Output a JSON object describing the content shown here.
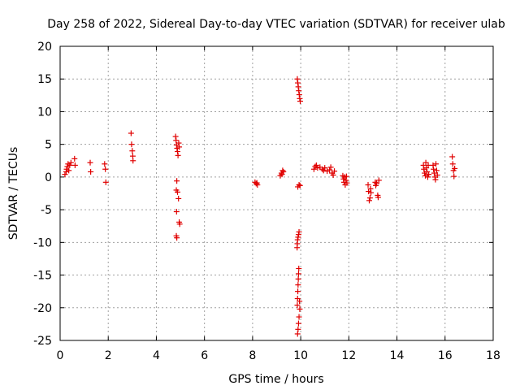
{
  "chart_data": {
    "type": "scatter",
    "title": "Day 258 of 2022, Sidereal Day-to-day VTEC variation (SDTVAR) for receiver ulab",
    "xlabel": "GPS time / hours",
    "ylabel": "SDTVAR / TECUs",
    "xlim": [
      0,
      18
    ],
    "ylim": [
      -25,
      20
    ],
    "xticks": [
      "0",
      "2",
      "4",
      "6",
      "8",
      "10",
      "12",
      "14",
      "16",
      "18"
    ],
    "yticks": [
      "-25",
      "-20",
      "-15",
      "-10",
      "-5",
      "0",
      "5",
      "10",
      "15",
      "20"
    ],
    "grid": true,
    "marker": "plus",
    "series_color": "#e00000",
    "points": [
      [
        0.2,
        0.4
      ],
      [
        0.25,
        0.8
      ],
      [
        0.27,
        1.2
      ],
      [
        0.3,
        1.6
      ],
      [
        0.33,
        2.0
      ],
      [
        0.36,
        1.0
      ],
      [
        0.4,
        1.8
      ],
      [
        0.45,
        2.2
      ],
      [
        0.6,
        2.8
      ],
      [
        0.62,
        1.8
      ],
      [
        1.25,
        2.2
      ],
      [
        1.27,
        0.8
      ],
      [
        1.85,
        2.0
      ],
      [
        1.88,
        1.2
      ],
      [
        1.9,
        -0.8
      ],
      [
        2.95,
        6.7
      ],
      [
        2.97,
        5.0
      ],
      [
        3.0,
        4.0
      ],
      [
        3.02,
        3.2
      ],
      [
        3.03,
        2.5
      ],
      [
        4.8,
        6.2
      ],
      [
        4.82,
        5.6
      ],
      [
        4.84,
        4.9
      ],
      [
        4.86,
        4.4
      ],
      [
        4.88,
        3.9
      ],
      [
        4.9,
        3.3
      ],
      [
        4.93,
        5.2
      ],
      [
        4.95,
        4.6
      ],
      [
        4.85,
        -0.6
      ],
      [
        4.83,
        -2.0
      ],
      [
        4.88,
        -2.3
      ],
      [
        4.92,
        -3.3
      ],
      [
        4.84,
        -5.3
      ],
      [
        4.95,
        -6.9
      ],
      [
        4.97,
        -7.2
      ],
      [
        4.83,
        -9.0
      ],
      [
        4.85,
        -9.3
      ],
      [
        8.1,
        -0.8
      ],
      [
        8.15,
        -1.0
      ],
      [
        8.2,
        -1.2
      ],
      [
        8.18,
        -0.9
      ],
      [
        9.15,
        0.2
      ],
      [
        9.2,
        0.6
      ],
      [
        9.25,
        1.0
      ],
      [
        9.22,
        0.4
      ],
      [
        9.28,
        0.8
      ],
      [
        9.88,
        -1.5
      ],
      [
        9.93,
        -1.2
      ],
      [
        9.97,
        -1.3
      ],
      [
        9.86,
        15.0
      ],
      [
        9.88,
        14.4
      ],
      [
        9.9,
        13.8
      ],
      [
        9.92,
        13.2
      ],
      [
        9.94,
        12.6
      ],
      [
        9.96,
        12.0
      ],
      [
        9.98,
        11.6
      ],
      [
        9.85,
        -10.8
      ],
      [
        9.86,
        -10.2
      ],
      [
        9.87,
        -9.6
      ],
      [
        9.89,
        -9.2
      ],
      [
        9.91,
        -8.8
      ],
      [
        9.93,
        -8.4
      ],
      [
        9.92,
        -14.0
      ],
      [
        9.91,
        -14.8
      ],
      [
        9.9,
        -15.6
      ],
      [
        9.89,
        -16.5
      ],
      [
        9.88,
        -17.5
      ],
      [
        9.87,
        -18.6
      ],
      [
        9.86,
        -19.6
      ],
      [
        9.95,
        -19.0
      ],
      [
        9.96,
        -20.2
      ],
      [
        9.93,
        -21.4
      ],
      [
        9.91,
        -22.4
      ],
      [
        9.89,
        -23.3
      ],
      [
        9.87,
        -24.0
      ],
      [
        10.55,
        1.2
      ],
      [
        10.6,
        1.6
      ],
      [
        10.65,
        1.8
      ],
      [
        10.7,
        1.4
      ],
      [
        10.8,
        1.5
      ],
      [
        10.9,
        1.2
      ],
      [
        10.95,
        1.0
      ],
      [
        11.0,
        1.4
      ],
      [
        11.1,
        0.9
      ],
      [
        11.2,
        1.1
      ],
      [
        11.25,
        1.5
      ],
      [
        11.3,
        0.6
      ],
      [
        11.35,
        0.3
      ],
      [
        11.4,
        0.9
      ],
      [
        11.75,
        0.2
      ],
      [
        11.78,
        -0.3
      ],
      [
        11.8,
        -0.8
      ],
      [
        11.82,
        0.0
      ],
      [
        11.85,
        -1.2
      ],
      [
        11.88,
        -0.5
      ],
      [
        11.9,
        0.1
      ],
      [
        11.92,
        -0.9
      ],
      [
        12.8,
        -1.2
      ],
      [
        12.82,
        -2.2
      ],
      [
        12.85,
        -3.6
      ],
      [
        12.88,
        -3.2
      ],
      [
        12.9,
        -1.8
      ],
      [
        12.92,
        -2.4
      ],
      [
        13.1,
        -0.8
      ],
      [
        13.12,
        -1.3
      ],
      [
        13.15,
        -1.0
      ],
      [
        13.2,
        -2.8
      ],
      [
        13.22,
        -3.1
      ],
      [
        13.25,
        -0.5
      ],
      [
        15.1,
        1.8
      ],
      [
        15.12,
        1.2
      ],
      [
        15.15,
        0.6
      ],
      [
        15.18,
        0.2
      ],
      [
        15.2,
        2.2
      ],
      [
        15.22,
        1.4
      ],
      [
        15.25,
        0.8
      ],
      [
        15.28,
        0.0
      ],
      [
        15.3,
        1.8
      ],
      [
        15.32,
        0.4
      ],
      [
        15.5,
        1.8
      ],
      [
        15.52,
        1.2
      ],
      [
        15.55,
        0.6
      ],
      [
        15.58,
        0.0
      ],
      [
        15.6,
        -0.4
      ],
      [
        15.62,
        2.0
      ],
      [
        15.65,
        1.0
      ],
      [
        15.68,
        0.3
      ],
      [
        16.3,
        3.1
      ],
      [
        16.32,
        2.0
      ],
      [
        16.35,
        1.0
      ],
      [
        16.37,
        0.1
      ],
      [
        16.4,
        1.3
      ]
    ]
  }
}
